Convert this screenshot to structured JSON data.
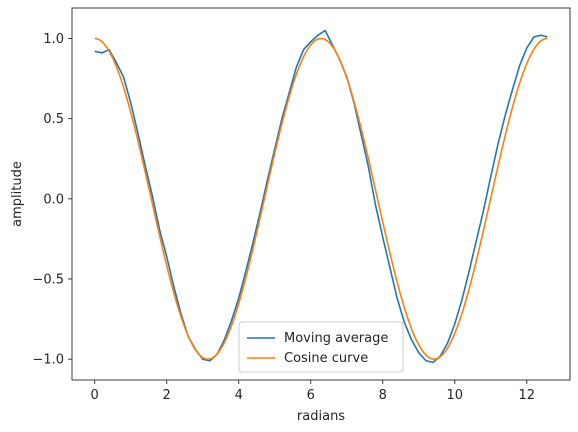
{
  "chart_data": {
    "type": "line",
    "title": "",
    "xlabel": "radians",
    "ylabel": "amplitude",
    "xlim": [
      -0.63,
      13.2
    ],
    "ylim": [
      -1.13,
      1.19
    ],
    "x_ticks": [
      0,
      2,
      4,
      6,
      8,
      10,
      12
    ],
    "x_tick_labels": [
      "0",
      "2",
      "4",
      "6",
      "8",
      "10",
      "12"
    ],
    "y_ticks": [
      -1.0,
      -0.5,
      0.0,
      0.5,
      1.0
    ],
    "y_tick_labels": [
      "−1.0",
      "−0.5",
      "0.0",
      "0.5",
      "1.0"
    ],
    "grid": false,
    "legend_position": "lower-center",
    "series": [
      {
        "name": "Moving average",
        "color": "#1f77b4",
        "x": [
          0,
          0.2,
          0.4,
          0.6,
          0.8,
          1.0,
          1.2,
          1.4,
          1.6,
          1.8,
          2.0,
          2.2,
          2.4,
          2.6,
          2.8,
          3.0,
          3.2,
          3.4,
          3.6,
          3.8,
          4.0,
          4.2,
          4.4,
          4.6,
          4.8,
          5.0,
          5.2,
          5.4,
          5.6,
          5.8,
          6.0,
          6.2,
          6.4,
          6.6,
          6.8,
          7.0,
          7.2,
          7.4,
          7.6,
          7.8,
          8.0,
          8.2,
          8.4,
          8.6,
          8.8,
          9.0,
          9.2,
          9.4,
          9.6,
          9.8,
          10.0,
          10.2,
          10.4,
          10.6,
          10.8,
          11.0,
          11.2,
          11.4,
          11.6,
          11.8,
          12.0,
          12.2,
          12.4,
          12.57
        ],
        "y": [
          0.92,
          0.91,
          0.93,
          0.85,
          0.76,
          0.6,
          0.41,
          0.21,
          0.02,
          -0.19,
          -0.36,
          -0.55,
          -0.72,
          -0.86,
          -0.94,
          -1.0,
          -1.01,
          -0.97,
          -0.88,
          -0.76,
          -0.62,
          -0.45,
          -0.27,
          -0.08,
          0.12,
          0.31,
          0.5,
          0.66,
          0.82,
          0.93,
          0.98,
          1.02,
          1.05,
          0.96,
          0.87,
          0.76,
          0.6,
          0.4,
          0.2,
          -0.04,
          -0.24,
          -0.43,
          -0.62,
          -0.77,
          -0.88,
          -0.96,
          -1.01,
          -1.02,
          -0.98,
          -0.9,
          -0.78,
          -0.63,
          -0.45,
          -0.26,
          -0.07,
          0.14,
          0.34,
          0.52,
          0.68,
          0.83,
          0.94,
          1.01,
          1.02,
          1.01
        ]
      },
      {
        "name": "Cosine curve",
        "color": "#ff7f0e",
        "function": "cos",
        "x_range": [
          0,
          12.566
        ]
      }
    ]
  }
}
